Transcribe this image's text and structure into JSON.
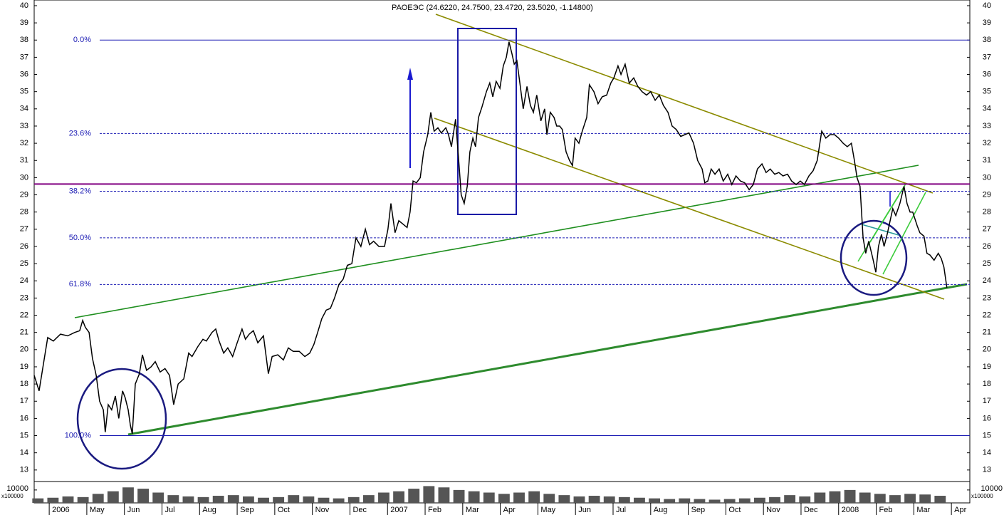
{
  "chart_data": [
    {
      "type": "line",
      "title": "РАОЕЭС (24.6220, 24.7500, 23.4720, 23.5020, -1.14800)",
      "color": "#000000",
      "xlim": [
        2.6,
        27.49
      ],
      "ylim": [
        12.33,
        40.33
      ],
      "yticks": [
        13,
        14,
        15,
        16,
        17,
        18,
        19,
        20,
        21,
        22,
        23,
        24,
        25,
        26,
        27,
        28,
        29,
        30,
        31,
        32,
        33,
        34,
        35,
        36,
        37,
        38,
        39,
        40
      ],
      "x": [
        2.6,
        2.73,
        2.87,
        2.96,
        3.11,
        3.3,
        3.49,
        3.68,
        3.81,
        3.89,
        3.96,
        4.06,
        4.15,
        4.25,
        4.34,
        4.44,
        4.49,
        4.57,
        4.66,
        4.76,
        4.85,
        4.95,
        5.02,
        5.1,
        5.16,
        5.21,
        5.29,
        5.4,
        5.48,
        5.59,
        5.71,
        5.82,
        5.95,
        6.08,
        6.2,
        6.31,
        6.43,
        6.58,
        6.71,
        6.8,
        6.96,
        7.09,
        7.18,
        7.33,
        7.43,
        7.52,
        7.64,
        7.75,
        7.88,
        8.0,
        8.13,
        8.22,
        8.32,
        8.43,
        8.55,
        8.7,
        8.83,
        8.93,
        9.08,
        9.23,
        9.36,
        9.49,
        9.65,
        9.8,
        9.93,
        10.04,
        10.14,
        10.25,
        10.37,
        10.48,
        10.59,
        10.71,
        10.82,
        10.93,
        11.05,
        11.16,
        11.29,
        11.41,
        11.52,
        11.63,
        11.77,
        11.92,
        12.01,
        12.09,
        12.2,
        12.3,
        12.41,
        12.52,
        12.6,
        12.68,
        12.77,
        12.87,
        12.96,
        13.07,
        13.15,
        13.24,
        13.34,
        13.43,
        13.55,
        13.62,
        13.7,
        13.81,
        13.91,
        13.96,
        14.04,
        14.12,
        14.19,
        14.27,
        14.34,
        14.42,
        14.51,
        14.63,
        14.72,
        14.8,
        14.89,
        14.99,
        15.08,
        15.16,
        15.23,
        15.31,
        15.37,
        15.44,
        15.52,
        15.61,
        15.71,
        15.8,
        15.88,
        15.97,
        16.08,
        16.18,
        16.24,
        16.33,
        16.43,
        16.5,
        16.58,
        16.65,
        16.75,
        16.84,
        16.92,
        16.99,
        17.09,
        17.18,
        17.3,
        17.37,
        17.49,
        17.6,
        17.71,
        17.83,
        17.94,
        18.02,
        18.13,
        18.21,
        18.32,
        18.43,
        18.55,
        18.66,
        18.77,
        18.89,
        19.0,
        19.12,
        19.23,
        19.34,
        19.46,
        19.57,
        19.68,
        19.8,
        19.91,
        20.02,
        20.14,
        20.25,
        20.37,
        20.44,
        20.52,
        20.61,
        20.71,
        20.82,
        20.93,
        21.05,
        21.16,
        21.27,
        21.39,
        21.5,
        21.62,
        21.73,
        21.84,
        21.96,
        22.07,
        22.18,
        22.3,
        22.41,
        22.52,
        22.64,
        22.75,
        22.87,
        22.98,
        23.09,
        23.21,
        23.32,
        23.43,
        23.55,
        23.66,
        23.77,
        23.89,
        24.0,
        24.12,
        24.23,
        24.34,
        24.42,
        24.49,
        24.57,
        24.65,
        24.72,
        24.8,
        24.91,
        24.99,
        25.06,
        25.14,
        25.21,
        25.29,
        25.37,
        25.44,
        25.52,
        25.63,
        25.74,
        25.82,
        25.9,
        25.97,
        26.09,
        26.16,
        26.27,
        26.35,
        26.43,
        26.54,
        26.65,
        26.73,
        26.8,
        26.88
      ],
      "values": [
        18.5,
        17.6,
        19.5,
        20.7,
        20.5,
        20.9,
        20.8,
        21.0,
        21.1,
        21.7,
        21.3,
        21.0,
        19.5,
        18.5,
        17.0,
        16.5,
        15.2,
        16.8,
        16.5,
        17.3,
        16.0,
        17.6,
        17.2,
        16.5,
        15.6,
        15.1,
        18.0,
        18.6,
        19.7,
        18.8,
        19.0,
        19.3,
        18.7,
        18.9,
        18.5,
        16.8,
        18.0,
        18.3,
        19.8,
        19.6,
        20.2,
        20.6,
        20.5,
        21.0,
        21.2,
        20.5,
        19.8,
        20.1,
        19.6,
        20.4,
        21.2,
        20.6,
        20.9,
        21.1,
        20.4,
        20.8,
        18.6,
        19.6,
        19.7,
        19.4,
        20.1,
        19.9,
        19.9,
        19.6,
        19.8,
        20.3,
        21.0,
        21.8,
        22.3,
        22.4,
        23.0,
        23.8,
        24.1,
        24.9,
        25.0,
        26.5,
        26.0,
        27.0,
        26.1,
        26.3,
        26.0,
        26.0,
        27.0,
        28.5,
        26.8,
        27.5,
        27.3,
        27.1,
        28.0,
        29.8,
        29.7,
        30.0,
        31.5,
        32.5,
        33.8,
        32.7,
        32.9,
        32.6,
        32.9,
        32.5,
        31.8,
        33.4,
        30.5,
        29.0,
        28.5,
        29.5,
        31.5,
        32.3,
        31.8,
        33.5,
        34.1,
        35.0,
        35.5,
        34.7,
        35.6,
        35.2,
        36.5,
        37.0,
        37.9,
        37.2,
        36.6,
        36.8,
        35.5,
        34.0,
        35.3,
        34.2,
        33.8,
        34.8,
        33.3,
        34.0,
        32.5,
        33.8,
        33.5,
        33.0,
        33.0,
        32.8,
        31.5,
        31.0,
        30.7,
        32.3,
        32.0,
        32.7,
        33.5,
        35.4,
        35.0,
        34.3,
        34.7,
        34.8,
        35.5,
        35.8,
        36.5,
        36.0,
        36.6,
        35.5,
        35.8,
        35.3,
        35.0,
        34.8,
        35.0,
        34.5,
        34.8,
        34.2,
        33.8,
        33.0,
        32.8,
        32.4,
        32.5,
        32.6,
        32.0,
        31.0,
        30.5,
        29.7,
        29.8,
        30.5,
        30.2,
        30.5,
        29.8,
        30.2,
        29.6,
        30.1,
        29.8,
        29.7,
        29.3,
        29.6,
        30.5,
        30.8,
        30.3,
        30.5,
        30.2,
        30.3,
        30.1,
        30.2,
        29.8,
        29.6,
        29.8,
        29.6,
        30.1,
        30.4,
        31.0,
        32.7,
        32.3,
        32.5,
        32.5,
        32.3,
        32.0,
        31.8,
        32.0,
        31.0,
        30.0,
        29.5,
        26.5,
        25.6,
        26.3,
        25.3,
        24.5,
        26.0,
        26.7,
        26.0,
        26.7,
        27.5,
        28.2,
        27.8,
        28.5,
        29.5,
        28.5,
        28.0,
        28.0,
        27.2,
        26.8,
        26.6,
        25.6,
        25.5,
        25.2,
        25.6,
        25.3,
        24.8,
        23.6
      ],
      "fib_color": "#1c1cb4",
      "fib_levels": [
        {
          "value": 38,
          "label": "0.0%"
        },
        {
          "value": 32.57,
          "label": "23.6%"
        },
        {
          "value": 29.21,
          "label": "38.2%"
        },
        {
          "value": 26.5,
          "label": "50.0%"
        },
        {
          "value": 23.79,
          "label": "61.8%"
        },
        {
          "value": 15,
          "label": "100.0%"
        }
      ],
      "hline": {
        "value": 29.63,
        "color": "#800080"
      }
    },
    {
      "type": "bar",
      "color": "#555555",
      "xlim": [
        2.6,
        27.49
      ],
      "ylim": [
        0,
        16000
      ],
      "yticks": [
        10000
      ],
      "y_unit_label": "x100000",
      "xticks": [
        {
          "value": 3,
          "label": "2006"
        },
        {
          "value": 4,
          "label": "May"
        },
        {
          "value": 5,
          "label": "Jun"
        },
        {
          "value": 6,
          "label": "Jul"
        },
        {
          "value": 7,
          "label": "Aug"
        },
        {
          "value": 8,
          "label": "Sep"
        },
        {
          "value": 9,
          "label": "Oct"
        },
        {
          "value": 10,
          "label": "Nov"
        },
        {
          "value": 11,
          "label": "Dec"
        },
        {
          "value": 12,
          "label": "2007"
        },
        {
          "value": 13,
          "label": "Feb"
        },
        {
          "value": 14,
          "label": "Mar"
        },
        {
          "value": 15,
          "label": "Apr"
        },
        {
          "value": 16,
          "label": "May"
        },
        {
          "value": 17,
          "label": "Jun"
        },
        {
          "value": 18,
          "label": "Jul"
        },
        {
          "value": 19,
          "label": "Aug"
        },
        {
          "value": 20,
          "label": "Sep"
        },
        {
          "value": 21,
          "label": "Oct"
        },
        {
          "value": 22,
          "label": "Nov"
        },
        {
          "value": 23,
          "label": "Dec"
        },
        {
          "value": 24,
          "label": "2008"
        },
        {
          "value": 25,
          "label": "Feb"
        },
        {
          "value": 26,
          "label": "Mar"
        },
        {
          "value": 27,
          "label": "Apr"
        }
      ],
      "x": [
        2.7,
        3.1,
        3.5,
        3.9,
        4.3,
        4.7,
        5.1,
        5.5,
        5.9,
        6.3,
        6.7,
        7.1,
        7.5,
        7.9,
        8.3,
        8.7,
        9.1,
        9.5,
        9.9,
        10.3,
        10.7,
        11.1,
        11.5,
        11.9,
        12.3,
        12.7,
        13.1,
        13.5,
        13.9,
        14.3,
        14.7,
        15.1,
        15.5,
        15.9,
        16.3,
        16.7,
        17.1,
        17.5,
        17.9,
        18.3,
        18.7,
        19.1,
        19.5,
        19.9,
        20.3,
        20.7,
        21.1,
        21.5,
        21.9,
        22.3,
        22.7,
        23.1,
        23.5,
        23.9,
        24.3,
        24.7,
        25.1,
        25.5,
        25.9,
        26.3,
        26.7
      ],
      "values": [
        3500,
        4000,
        5000,
        4500,
        7000,
        9000,
        12000,
        11000,
        8000,
        6000,
        5000,
        4500,
        5500,
        6000,
        5000,
        4000,
        4500,
        6000,
        5000,
        4000,
        3500,
        4500,
        6000,
        8000,
        9000,
        11000,
        13000,
        12000,
        10000,
        9000,
        8000,
        7000,
        8000,
        9000,
        7000,
        6000,
        5000,
        5500,
        5000,
        4500,
        4000,
        3500,
        3000,
        3500,
        3000,
        2500,
        3000,
        3500,
        4000,
        4500,
        6000,
        5000,
        8000,
        9000,
        10000,
        8000,
        7000,
        6000,
        7000,
        6500,
        5500
      ]
    }
  ]
}
